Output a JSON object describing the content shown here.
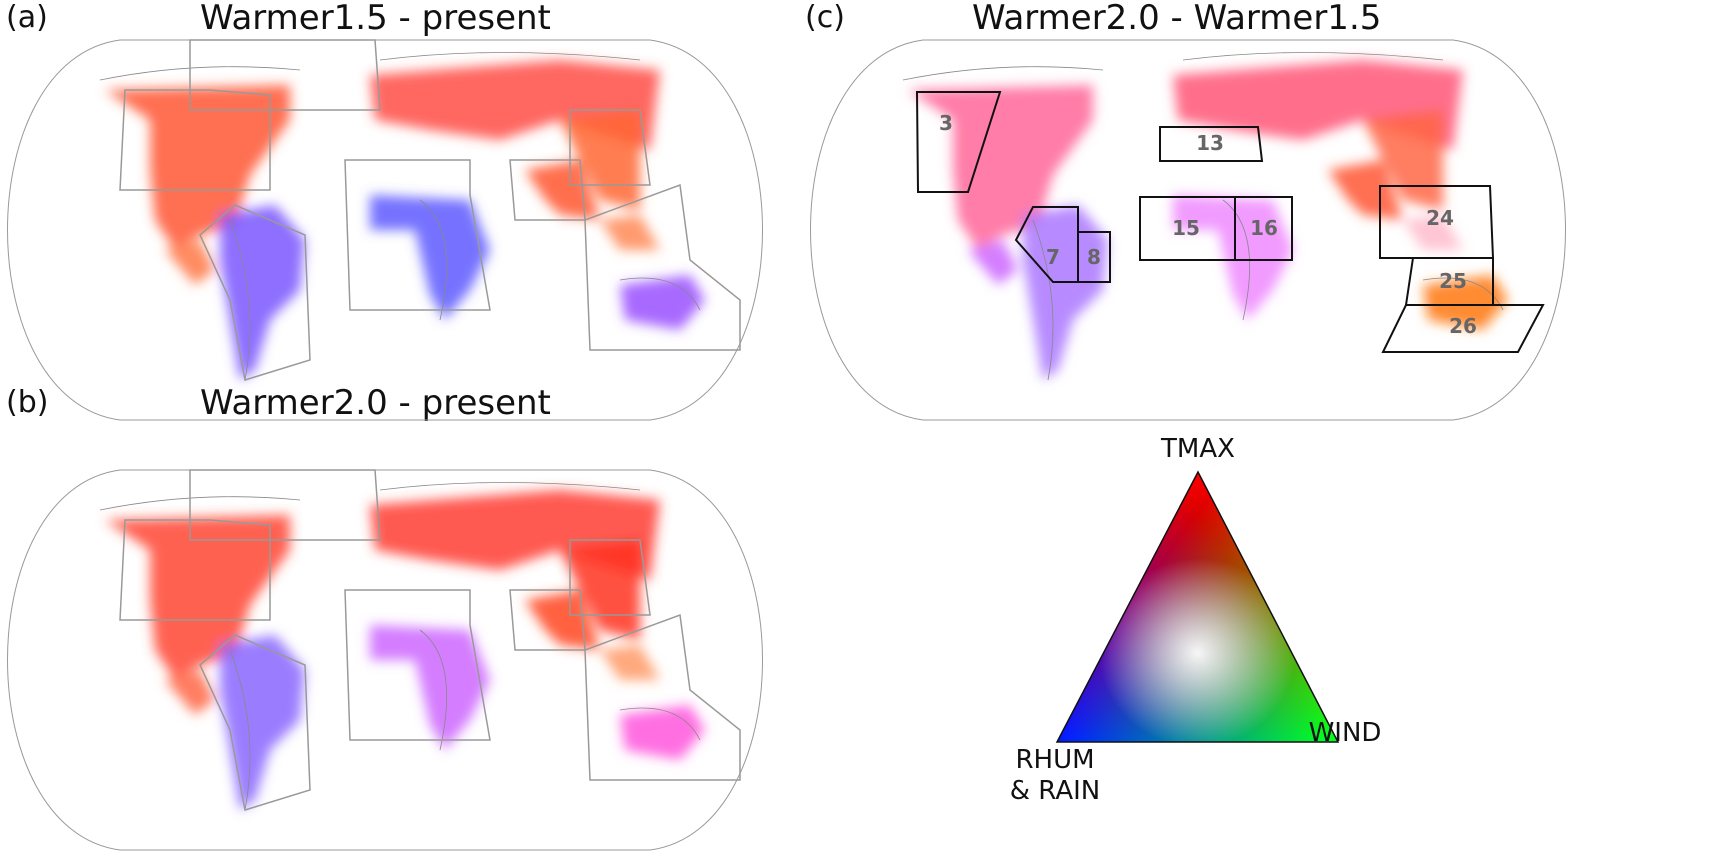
{
  "panels": [
    {
      "id": "a",
      "label": "(a)",
      "title": "Warmer1.5 - present"
    },
    {
      "id": "b",
      "label": "(b)",
      "title": "Warmer2.0 - present"
    },
    {
      "id": "c",
      "label": "(c)",
      "title": "Warmer2.0 - Warmer1.5"
    }
  ],
  "regions_c": [
    "3",
    "13",
    "7",
    "8",
    "15",
    "16",
    "24",
    "25",
    "26"
  ],
  "legend": {
    "top": "TMAX",
    "left_line1": "RHUM",
    "left_line2": "& RAIN",
    "right": "WIND",
    "colors": {
      "tmax": "#ff0000",
      "rhum_rain": "#0000ff",
      "wind": "#00ff00"
    }
  }
}
